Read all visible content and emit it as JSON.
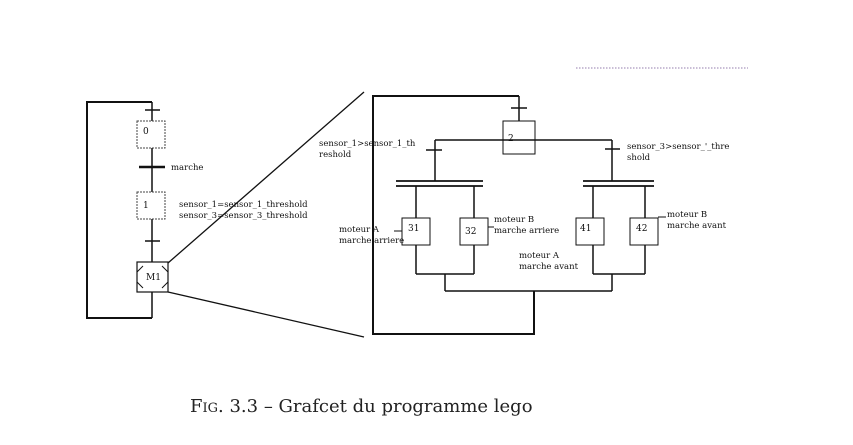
{
  "steps": {
    "s0": "0",
    "s1": "1",
    "m1": "M1",
    "s2": "2",
    "s31": "31",
    "s32": "32",
    "s41": "41",
    "s42": "42"
  },
  "labels": {
    "t_marche": "marche",
    "t_sensor_line1": "sensor_1=sensor_1_threshold",
    "t_sensor_line2": "sensor_3=sensor_3_threshold",
    "t_left_line1": "sensor_1>sensor_1_th",
    "t_left_line2": "reshold",
    "t_right_line1": "sensor_3>sensor_'_thre",
    "t_right_line2": "shold",
    "a31_line1": "moteur A",
    "a31_line2": "marche arriere",
    "a32_line1": "moteur B",
    "a32_line2": "marche arriere",
    "a41_line1": "moteur A",
    "a41_line2": "marche avant",
    "a42_line1": "moteur B",
    "a42_line2": "marche avant"
  },
  "caption": {
    "prefix": "Fig. 3.3",
    "text": " – Grafcet du programme lego"
  }
}
